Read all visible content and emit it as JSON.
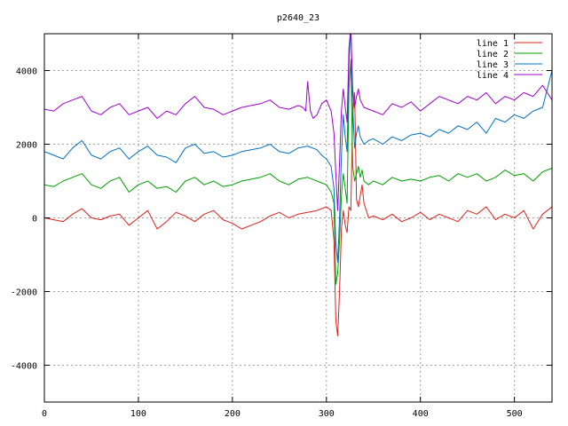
{
  "chart_data": {
    "type": "line",
    "title": "p2640_23",
    "xlabel": "",
    "ylabel": "",
    "xlim": [
      0,
      540
    ],
    "ylim": [
      -5000,
      5000
    ],
    "xticks": [
      0,
      100,
      200,
      300,
      400,
      500
    ],
    "yticks": [
      -4000,
      -2000,
      0,
      2000,
      4000
    ],
    "grid": true,
    "legend_position": "top-right",
    "series": [
      {
        "name": "line 1",
        "color": "#e0201a",
        "x": [
          0,
          10,
          20,
          30,
          40,
          50,
          60,
          70,
          80,
          90,
          100,
          110,
          120,
          130,
          140,
          150,
          160,
          170,
          180,
          190,
          200,
          210,
          220,
          230,
          240,
          250,
          260,
          270,
          280,
          290,
          295,
          300,
          305,
          308,
          310,
          312,
          314,
          316,
          318,
          320,
          322,
          324,
          326,
          328,
          330,
          332,
          334,
          336,
          338,
          340,
          345,
          350,
          360,
          370,
          380,
          390,
          400,
          410,
          420,
          430,
          440,
          450,
          460,
          470,
          480,
          490,
          500,
          510,
          520,
          530,
          540
        ],
        "y": [
          0,
          -50,
          -100,
          100,
          250,
          0,
          -50,
          50,
          100,
          -200,
          0,
          200,
          -300,
          -100,
          150,
          50,
          -100,
          100,
          200,
          -50,
          -150,
          -300,
          -200,
          -100,
          50,
          150,
          0,
          100,
          150,
          200,
          250,
          300,
          200,
          -600,
          -2800,
          -3200,
          -2000,
          -300,
          200,
          -200,
          -400,
          300,
          200,
          2800,
          3400,
          500,
          300,
          600,
          900,
          400,
          0,
          50,
          -50,
          100,
          -100,
          0,
          150,
          -50,
          100,
          0,
          -100,
          200,
          100,
          300,
          -50,
          100,
          0,
          200,
          -300,
          100,
          300
        ]
      },
      {
        "name": "line 2",
        "color": "#00a000",
        "x": [
          0,
          10,
          20,
          30,
          40,
          50,
          60,
          70,
          80,
          90,
          100,
          110,
          120,
          130,
          140,
          150,
          160,
          170,
          180,
          190,
          200,
          210,
          220,
          230,
          240,
          250,
          260,
          270,
          280,
          290,
          295,
          300,
          305,
          308,
          310,
          312,
          314,
          316,
          318,
          320,
          322,
          324,
          326,
          328,
          330,
          332,
          334,
          336,
          338,
          340,
          345,
          350,
          360,
          370,
          380,
          390,
          400,
          410,
          420,
          430,
          440,
          450,
          460,
          470,
          480,
          490,
          500,
          510,
          520,
          530,
          540
        ],
        "y": [
          900,
          850,
          1000,
          1100,
          1200,
          900,
          800,
          1000,
          1100,
          700,
          900,
          1000,
          800,
          850,
          700,
          1000,
          1100,
          900,
          1000,
          850,
          900,
          1000,
          1050,
          1100,
          1200,
          1000,
          900,
          1050,
          1100,
          1000,
          950,
          900,
          700,
          400,
          -1800,
          -1500,
          -600,
          600,
          1200,
          800,
          400,
          3500,
          4300,
          1400,
          1000,
          1200,
          1400,
          1100,
          1300,
          1000,
          900,
          1000,
          900,
          1100,
          1000,
          1050,
          1000,
          1100,
          1150,
          1000,
          1200,
          1100,
          1200,
          1000,
          1100,
          1300,
          1150,
          1200,
          1000,
          1250,
          1350
        ]
      },
      {
        "name": "line 3",
        "color": "#0070c0",
        "x": [
          0,
          10,
          20,
          30,
          40,
          50,
          60,
          70,
          80,
          90,
          100,
          110,
          120,
          130,
          140,
          150,
          160,
          170,
          180,
          190,
          200,
          210,
          220,
          230,
          240,
          250,
          260,
          270,
          280,
          290,
          295,
          300,
          305,
          308,
          310,
          312,
          314,
          316,
          318,
          320,
          322,
          324,
          326,
          328,
          330,
          332,
          334,
          336,
          338,
          340,
          345,
          350,
          360,
          370,
          380,
          390,
          400,
          410,
          420,
          430,
          440,
          450,
          460,
          470,
          480,
          490,
          500,
          510,
          520,
          530,
          540
        ],
        "y": [
          1800,
          1700,
          1600,
          1900,
          2100,
          1700,
          1600,
          1800,
          1900,
          1600,
          1800,
          1950,
          1700,
          1650,
          1500,
          1900,
          2000,
          1750,
          1800,
          1650,
          1700,
          1800,
          1850,
          1900,
          2000,
          1800,
          1750,
          1900,
          1950,
          1850,
          1700,
          1600,
          1400,
          800,
          -700,
          -1200,
          0,
          1700,
          2800,
          2200,
          1800,
          4200,
          5200,
          3000,
          1900,
          2300,
          2500,
          2200,
          2100,
          2000,
          2100,
          2150,
          2000,
          2200,
          2100,
          2250,
          2300,
          2200,
          2400,
          2300,
          2500,
          2400,
          2600,
          2300,
          2700,
          2600,
          2800,
          2700,
          2900,
          3000,
          4000
        ]
      },
      {
        "name": "line 4",
        "color": "#a000d0",
        "x": [
          0,
          10,
          20,
          30,
          40,
          50,
          60,
          70,
          80,
          90,
          100,
          110,
          120,
          130,
          140,
          150,
          160,
          170,
          180,
          190,
          200,
          210,
          220,
          230,
          240,
          250,
          260,
          270,
          275,
          278,
          280,
          283,
          286,
          290,
          295,
          300,
          305,
          308,
          310,
          312,
          314,
          316,
          318,
          320,
          322,
          324,
          326,
          328,
          330,
          332,
          334,
          336,
          338,
          340,
          345,
          350,
          360,
          370,
          380,
          390,
          400,
          410,
          420,
          430,
          440,
          450,
          460,
          470,
          480,
          490,
          500,
          510,
          520,
          530,
          540
        ],
        "y": [
          2950,
          2900,
          3100,
          3200,
          3300,
          2900,
          2800,
          3000,
          3100,
          2800,
          2900,
          3000,
          2700,
          2900,
          2800,
          3100,
          3300,
          3000,
          2950,
          2800,
          2900,
          3000,
          3050,
          3100,
          3200,
          3000,
          2950,
          3050,
          3000,
          2900,
          3700,
          2900,
          2700,
          2800,
          3100,
          3200,
          2900,
          2300,
          1200,
          200,
          1500,
          2900,
          3500,
          3000,
          2600,
          4600,
          5200,
          3500,
          3000,
          3300,
          3500,
          3200,
          3100,
          3000,
          2950,
          2900,
          2800,
          3100,
          3000,
          3150,
          2900,
          3100,
          3300,
          3200,
          3100,
          3300,
          3200,
          3400,
          3100,
          3300,
          3200,
          3400,
          3300,
          3600,
          3200
        ]
      }
    ]
  }
}
